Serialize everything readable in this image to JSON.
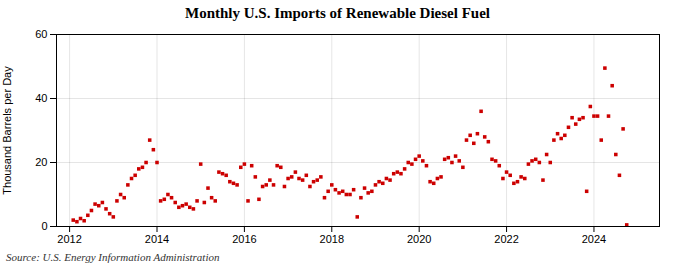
{
  "chart_data": {
    "type": "scatter",
    "title": "Monthly U.S. Imports of Renewable Diesel Fuel",
    "ylabel": "Thousand Barrels per Day",
    "caption": "Source: U.S. Energy Information Administration",
    "color": "#cc0000",
    "marker": "square",
    "grid": true,
    "xlim": [
      2011.7,
      2025.5
    ],
    "xticks": [
      2012,
      2014,
      2016,
      2018,
      2020,
      2022,
      2024
    ],
    "ylim": [
      0,
      60
    ],
    "yticks": [
      0,
      20,
      40,
      60
    ],
    "x": [
      2012.083,
      2012.167,
      2012.25,
      2012.333,
      2012.417,
      2012.5,
      2012.583,
      2012.667,
      2012.75,
      2012.833,
      2012.917,
      2013.0,
      2013.083,
      2013.167,
      2013.25,
      2013.333,
      2013.417,
      2013.5,
      2013.583,
      2013.667,
      2013.75,
      2013.833,
      2013.917,
      2014.0,
      2014.083,
      2014.167,
      2014.25,
      2014.333,
      2014.417,
      2014.5,
      2014.583,
      2014.667,
      2014.75,
      2014.833,
      2014.917,
      2015.0,
      2015.083,
      2015.167,
      2015.25,
      2015.333,
      2015.417,
      2015.5,
      2015.583,
      2015.667,
      2015.75,
      2015.833,
      2015.917,
      2016.0,
      2016.083,
      2016.167,
      2016.25,
      2016.333,
      2016.417,
      2016.5,
      2016.583,
      2016.667,
      2016.75,
      2016.833,
      2016.917,
      2017.0,
      2017.083,
      2017.167,
      2017.25,
      2017.333,
      2017.417,
      2017.5,
      2017.583,
      2017.667,
      2017.75,
      2017.833,
      2017.917,
      2018.0,
      2018.083,
      2018.167,
      2018.25,
      2018.333,
      2018.417,
      2018.5,
      2018.583,
      2018.667,
      2018.75,
      2018.833,
      2018.917,
      2019.0,
      2019.083,
      2019.167,
      2019.25,
      2019.333,
      2019.417,
      2019.5,
      2019.583,
      2019.667,
      2019.75,
      2019.833,
      2019.917,
      2020.0,
      2020.083,
      2020.167,
      2020.25,
      2020.333,
      2020.417,
      2020.5,
      2020.583,
      2020.667,
      2020.75,
      2020.833,
      2020.917,
      2021.0,
      2021.083,
      2021.167,
      2021.25,
      2021.333,
      2021.417,
      2021.5,
      2021.583,
      2021.667,
      2021.75,
      2021.833,
      2021.917,
      2022.0,
      2022.083,
      2022.167,
      2022.25,
      2022.333,
      2022.417,
      2022.5,
      2022.583,
      2022.667,
      2022.75,
      2022.833,
      2022.917,
      2023.0,
      2023.083,
      2023.167,
      2023.25,
      2023.333,
      2023.417,
      2023.5,
      2023.583,
      2023.667,
      2023.75,
      2023.833,
      2023.917,
      2024.0,
      2024.083,
      2024.167,
      2024.25,
      2024.333,
      2024.417,
      2024.5,
      2024.583,
      2024.667,
      2024.75
    ],
    "values": [
      2.0,
      1.5,
      2.5,
      1.8,
      3.5,
      5.0,
      7.0,
      6.5,
      7.5,
      5.5,
      4.0,
      3.0,
      8.0,
      10.0,
      9.0,
      13.0,
      15.0,
      16.0,
      18.0,
      18.5,
      20.0,
      27.0,
      24.0,
      20.0,
      8.0,
      8.5,
      10.0,
      9.0,
      7.5,
      6.0,
      6.5,
      7.0,
      6.0,
      5.5,
      8.0,
      19.5,
      7.5,
      12.0,
      9.0,
      8.0,
      17.0,
      16.5,
      16.0,
      14.0,
      13.5,
      13.0,
      18.5,
      19.5,
      8.0,
      19.0,
      15.5,
      8.5,
      12.5,
      13.0,
      14.5,
      13.0,
      19.0,
      18.5,
      12.5,
      15.0,
      15.5,
      17.0,
      15.0,
      14.5,
      16.0,
      12.5,
      14.0,
      14.5,
      15.5,
      9.0,
      11.0,
      13.0,
      11.5,
      10.5,
      11.0,
      10.0,
      10.0,
      11.5,
      3.0,
      9.0,
      12.0,
      10.5,
      11.0,
      13.0,
      14.0,
      13.5,
      15.0,
      14.5,
      16.5,
      17.0,
      16.5,
      18.0,
      20.0,
      19.5,
      21.0,
      22.0,
      20.5,
      19.0,
      14.0,
      13.5,
      15.0,
      15.5,
      21.0,
      21.5,
      20.0,
      22.0,
      20.5,
      18.5,
      27.0,
      28.5,
      26.0,
      29.0,
      36.0,
      28.0,
      26.5,
      21.0,
      20.5,
      19.0,
      15.0,
      17.0,
      16.0,
      13.5,
      14.0,
      15.5,
      15.0,
      19.5,
      20.5,
      21.0,
      20.0,
      14.5,
      22.5,
      20.0,
      27.0,
      29.0,
      27.5,
      28.5,
      31.0,
      34.0,
      32.0,
      33.5,
      34.0,
      11.0,
      37.5,
      34.5,
      34.5,
      27.0,
      49.5,
      34.5,
      44.0,
      22.5,
      16.0,
      30.5,
      0.5
    ]
  }
}
